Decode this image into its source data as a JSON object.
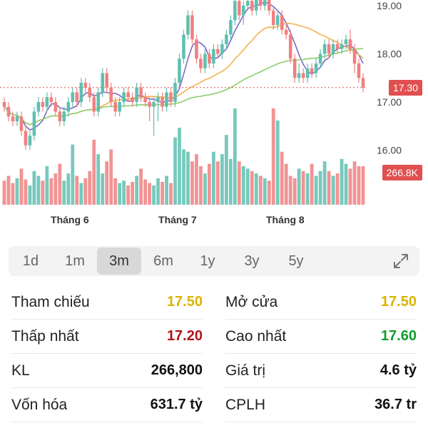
{
  "chart": {
    "y_ticks": [
      "19.00",
      "18.00",
      "17.00",
      "16.00"
    ],
    "month_labels": [
      "Tháng 6",
      "Tháng 7",
      "Tháng 8"
    ],
    "current_price_label": "17.30",
    "current_volume_label": "266.8K",
    "colors": {
      "up": "#5fbfb0",
      "down": "#f08080",
      "ma1": "#7b68c8",
      "ma2": "#f2b24f",
      "ma3": "#8ccf6a",
      "ref_line": "#e05050"
    }
  },
  "chart_data": {
    "type": "candlestick",
    "y_ticks": [
      16.0,
      17.0,
      18.0,
      19.0
    ],
    "current_price": 17.3,
    "current_volume": "266.8K",
    "x_labels": [
      "Tháng 6",
      "Tháng 7",
      "Tháng 8"
    ],
    "candles": [
      [
        17.0,
        16.9,
        17.1,
        16.8
      ],
      [
        16.9,
        16.7,
        17.0,
        16.6
      ],
      [
        16.7,
        16.6,
        16.8,
        16.5
      ],
      [
        16.6,
        16.7,
        16.8,
        16.5
      ],
      [
        16.7,
        16.4,
        16.8,
        16.3
      ],
      [
        16.4,
        16.1,
        16.5,
        16.0
      ],
      [
        16.1,
        16.3,
        16.4,
        16.0
      ],
      [
        16.3,
        16.8,
        16.9,
        16.2
      ],
      [
        16.8,
        17.0,
        17.1,
        16.7
      ],
      [
        17.0,
        16.9,
        17.1,
        16.8
      ],
      [
        16.9,
        17.1,
        17.2,
        16.8
      ],
      [
        17.1,
        17.0,
        17.2,
        16.9
      ],
      [
        17.0,
        16.8,
        17.1,
        16.7
      ],
      [
        16.8,
        16.6,
        16.9,
        16.5
      ],
      [
        16.6,
        16.8,
        16.9,
        16.5
      ],
      [
        16.8,
        17.0,
        17.1,
        16.7
      ],
      [
        17.0,
        17.2,
        17.3,
        16.9
      ],
      [
        17.2,
        17.0,
        17.3,
        16.9
      ],
      [
        17.0,
        17.4,
        17.5,
        16.9
      ],
      [
        17.4,
        17.3,
        17.5,
        17.2
      ],
      [
        17.3,
        17.1,
        17.4,
        17.0
      ],
      [
        17.1,
        16.8,
        17.2,
        16.7
      ],
      [
        16.8,
        17.2,
        17.3,
        16.7
      ],
      [
        17.2,
        17.6,
        17.7,
        17.1
      ],
      [
        17.6,
        17.3,
        17.7,
        17.2
      ],
      [
        17.3,
        17.0,
        17.4,
        16.9
      ],
      [
        17.0,
        16.8,
        17.1,
        16.7
      ],
      [
        16.8,
        17.0,
        17.1,
        16.7
      ],
      [
        17.0,
        17.2,
        17.3,
        16.9
      ],
      [
        17.2,
        17.1,
        17.3,
        17.0
      ],
      [
        17.1,
        17.0,
        17.2,
        16.9
      ],
      [
        17.0,
        17.3,
        17.4,
        16.9
      ],
      [
        17.3,
        17.1,
        17.4,
        17.0
      ],
      [
        17.1,
        17.0,
        17.2,
        16.9
      ],
      [
        17.0,
        16.9,
        17.1,
        16.6
      ],
      [
        16.9,
        17.0,
        17.1,
        16.3
      ],
      [
        17.0,
        17.1,
        17.2,
        16.6
      ],
      [
        17.1,
        16.9,
        17.2,
        16.8
      ],
      [
        16.9,
        17.2,
        17.3,
        16.8
      ],
      [
        17.2,
        17.0,
        17.3,
        16.9
      ],
      [
        17.0,
        17.4,
        17.5,
        16.9
      ],
      [
        17.4,
        17.9,
        18.0,
        17.3
      ],
      [
        17.9,
        18.4,
        18.5,
        17.8
      ],
      [
        18.4,
        18.8,
        18.9,
        18.3
      ],
      [
        18.8,
        18.3,
        18.9,
        18.2
      ],
      [
        18.3,
        17.9,
        18.4,
        17.8
      ],
      [
        17.9,
        17.7,
        18.0,
        17.6
      ],
      [
        17.7,
        18.0,
        18.1,
        17.6
      ],
      [
        18.0,
        17.8,
        18.1,
        17.7
      ],
      [
        17.8,
        18.1,
        18.2,
        17.7
      ],
      [
        18.1,
        18.0,
        18.2,
        17.9
      ],
      [
        18.0,
        18.2,
        18.3,
        17.9
      ],
      [
        18.2,
        18.4,
        18.5,
        18.1
      ],
      [
        18.4,
        18.7,
        18.8,
        18.3
      ],
      [
        18.7,
        19.1,
        19.2,
        18.6
      ],
      [
        19.1,
        18.8,
        19.2,
        18.7
      ],
      [
        18.8,
        19.0,
        19.1,
        18.6
      ],
      [
        19.0,
        19.1,
        19.2,
        18.9
      ],
      [
        19.1,
        18.9,
        19.2,
        18.8
      ],
      [
        18.9,
        19.2,
        19.3,
        18.8
      ],
      [
        19.2,
        19.0,
        19.3,
        18.9
      ],
      [
        19.0,
        19.2,
        19.3,
        18.9
      ],
      [
        19.2,
        18.9,
        19.3,
        18.8
      ],
      [
        18.9,
        18.6,
        19.0,
        18.5
      ],
      [
        18.6,
        18.8,
        18.9,
        18.5
      ],
      [
        18.8,
        18.5,
        18.9,
        18.4
      ],
      [
        18.5,
        18.4,
        18.6,
        18.3
      ],
      [
        18.4,
        17.9,
        18.5,
        17.8
      ],
      [
        17.9,
        17.5,
        18.0,
        17.4
      ],
      [
        17.5,
        17.6,
        17.8,
        17.4
      ],
      [
        17.6,
        17.5,
        17.7,
        17.4
      ],
      [
        17.5,
        17.7,
        17.8,
        17.4
      ],
      [
        17.7,
        17.6,
        17.8,
        17.5
      ],
      [
        17.6,
        17.8,
        17.9,
        17.5
      ],
      [
        17.8,
        18.0,
        18.1,
        17.7
      ],
      [
        18.0,
        18.2,
        18.3,
        17.9
      ],
      [
        18.2,
        18.0,
        18.3,
        17.9
      ],
      [
        18.0,
        18.2,
        18.3,
        17.9
      ],
      [
        18.2,
        18.1,
        18.3,
        18.0
      ],
      [
        18.1,
        18.2,
        18.3,
        18.0
      ],
      [
        18.2,
        18.3,
        18.4,
        18.1
      ],
      [
        18.3,
        18.1,
        18.5,
        18.0
      ],
      [
        18.1,
        17.8,
        18.2,
        17.6
      ],
      [
        17.8,
        17.5,
        17.9,
        17.4
      ],
      [
        17.5,
        17.3,
        17.6,
        17.2
      ]
    ],
    "volumes": [
      2.0,
      2.4,
      1.8,
      2.2,
      3.0,
      2.1,
      1.6,
      2.8,
      2.4,
      2.0,
      3.2,
      2.2,
      2.6,
      3.4,
      2.0,
      2.6,
      5.0,
      2.4,
      1.8,
      2.2,
      2.8,
      5.4,
      4.2,
      2.6,
      3.6,
      4.6,
      2.2,
      1.8,
      2.0,
      1.6,
      1.9,
      2.4,
      3.0,
      2.1,
      1.8,
      1.6,
      2.2,
      1.9,
      2.4,
      1.8,
      5.6,
      6.4,
      4.6,
      4.4,
      3.6,
      4.2,
      3.2,
      2.6,
      3.4,
      4.4,
      3.6,
      4.2,
      5.8,
      3.8,
      8.0,
      3.6,
      3.2,
      3.0,
      2.8,
      2.6,
      2.4,
      2.2,
      2.0,
      8.0,
      7.0,
      4.4,
      3.4,
      2.4,
      2.2,
      3.0,
      2.8,
      2.6,
      3.4,
      2.4,
      2.8,
      3.6,
      2.8,
      2.4,
      2.6,
      3.8,
      3.4,
      3.0,
      3.6,
      3.2,
      3.2
    ]
  },
  "time_ranges": [
    {
      "label": "1d",
      "active": false
    },
    {
      "label": "1m",
      "active": false
    },
    {
      "label": "3m",
      "active": true
    },
    {
      "label": "6m",
      "active": false
    },
    {
      "label": "1y",
      "active": false
    },
    {
      "label": "3y",
      "active": false
    },
    {
      "label": "5y",
      "active": false
    }
  ],
  "stats": [
    {
      "left_label": "Tham chiếu",
      "left_value": "17.50",
      "left_color": "yellow",
      "right_label": "Mở cửa",
      "right_value": "17.50",
      "right_color": "yellow"
    },
    {
      "left_label": "Thấp nhất",
      "left_value": "17.20",
      "left_color": "red",
      "right_label": "Cao nhất",
      "right_value": "17.60",
      "right_color": "green"
    },
    {
      "left_label": "KL",
      "left_value": "266,800",
      "left_color": "dark",
      "right_label": "Giá trị",
      "right_value": "4.6 tỷ",
      "right_color": "dark"
    },
    {
      "left_label": "Vốn hóa",
      "left_value": "631.7 tỷ",
      "left_color": "dark",
      "right_label": "CPLH",
      "right_value": "36.7 tr",
      "right_color": "dark"
    }
  ]
}
